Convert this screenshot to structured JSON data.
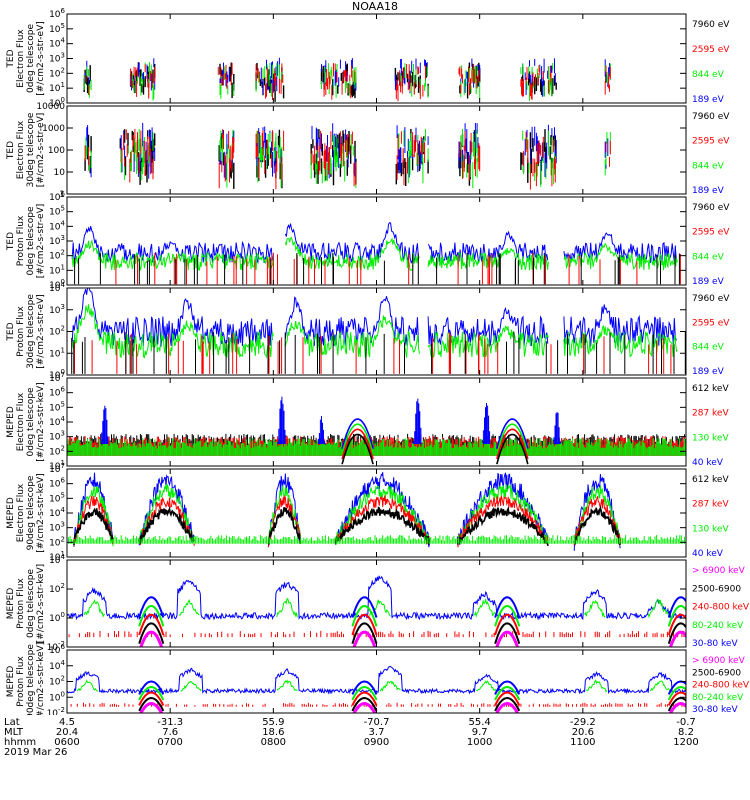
{
  "title": "NOAA18",
  "x_axis": {
    "time_hhmm": [
      "0600",
      "0700",
      "0800",
      "0900",
      "1000",
      "1100",
      "1200"
    ],
    "rows": [
      {
        "label": "Lat",
        "values": [
          "4.5",
          "-31.3",
          "55.9",
          "-70.7",
          "55.4",
          "-29.2",
          "-0.7"
        ]
      },
      {
        "label": "MLT",
        "values": [
          "20.4",
          "7.6",
          "18.6",
          "3.7",
          "9.7",
          "20.6",
          "8.2"
        ]
      },
      {
        "label": "hhmm",
        "values": [
          "0600",
          "0700",
          "0800",
          "0900",
          "1000",
          "1100",
          "1200"
        ]
      }
    ],
    "date": "2019 Mar 26"
  },
  "colors": {
    "black": "#000000",
    "blue": "#0000ff",
    "green": "#00ee00",
    "red": "#ff0000",
    "magenta": "#ff00ff"
  },
  "chart_data": [
    {
      "type": "line",
      "panel": "TED 0deg electron",
      "ylabel": [
        "TED",
        "Electron Flux",
        "0deg telescope",
        "[#/cm2-s-str-eV]"
      ],
      "yscale": "log",
      "ylim_exp": [
        0,
        6
      ],
      "tick_labels": [
        "10^0",
        "10^1",
        "10^2",
        "10^3",
        "10^4",
        "10^5",
        "10^6"
      ],
      "legend": [
        {
          "text": "7960 eV",
          "color": "black"
        },
        {
          "text": "2595 eV",
          "color": "red"
        },
        {
          "text": "844 eV",
          "color": "green"
        },
        {
          "text": "189 eV",
          "color": "blue"
        }
      ],
      "series_style": "sparse_spikes",
      "active_windows_hhmm": [
        [
          "0610",
          "0614"
        ],
        [
          "0637",
          "0651"
        ],
        [
          "0728",
          "0737"
        ],
        [
          "0750",
          "0806"
        ],
        [
          "0828",
          "0848"
        ],
        [
          "0911",
          "0930"
        ],
        [
          "0948",
          "1000"
        ],
        [
          "1024",
          "1045"
        ],
        [
          "1113",
          "1116"
        ]
      ],
      "typical_log10_flux": 1.8
    },
    {
      "type": "line",
      "panel": "TED 30deg electron",
      "ylabel": [
        "TED",
        "Electron Flux",
        "30deg telescope",
        "[#/cm2-s-str-eV]"
      ],
      "yscale": "log",
      "ylim_exp": [
        0,
        4
      ],
      "tick_labels": [
        "1",
        "10",
        "100",
        "1000",
        "10000"
      ],
      "legend": [
        {
          "text": "7960 eV",
          "color": "black"
        },
        {
          "text": "2595 eV",
          "color": "red"
        },
        {
          "text": "844 eV",
          "color": "green"
        },
        {
          "text": "189 eV",
          "color": "blue"
        }
      ],
      "series_style": "sparse_spikes",
      "active_windows_hhmm": [
        [
          "0610",
          "0614"
        ],
        [
          "0631",
          "0651"
        ],
        [
          "0728",
          "0737"
        ],
        [
          "0750",
          "0806"
        ],
        [
          "0822",
          "0848"
        ],
        [
          "0911",
          "0930"
        ],
        [
          "0948",
          "1000"
        ],
        [
          "1024",
          "1045"
        ],
        [
          "1113",
          "1116"
        ]
      ],
      "typical_log10_flux": 2.0
    },
    {
      "type": "line",
      "panel": "TED 0deg proton",
      "ylabel": [
        "TED",
        "Proton Flux",
        "0deg telescope",
        "[#/cm2-s-str-eV]"
      ],
      "yscale": "log",
      "ylim_exp": [
        0,
        6
      ],
      "tick_labels": [
        "10^0",
        "10^1",
        "10^2",
        "10^3",
        "10^4",
        "10^5",
        "10^6"
      ],
      "legend": [
        {
          "text": "7960 eV",
          "color": "black"
        },
        {
          "text": "2595 eV",
          "color": "red"
        },
        {
          "text": "844 eV",
          "color": "green"
        },
        {
          "text": "189 eV",
          "color": "blue"
        }
      ],
      "series_style": "continuous_noisy",
      "baseline_log10": 1.6,
      "blue_peaks": [
        {
          "hhmm": "0613",
          "log10": 3.8
        },
        {
          "hhmm": "0701",
          "log10": 2.8
        },
        {
          "hhmm": "0810",
          "log10": 4.0
        },
        {
          "hhmm": "0908",
          "log10": 4.0
        },
        {
          "hhmm": "1017",
          "log10": 3.4
        },
        {
          "hhmm": "1114",
          "log10": 3.6
        }
      ]
    },
    {
      "type": "line",
      "panel": "TED 30deg proton",
      "ylabel": [
        "TED",
        "Proton Flux",
        "30deg telescope",
        "[#/cm2-s-str-eV]"
      ],
      "yscale": "log",
      "ylim_exp": [
        0,
        4
      ],
      "tick_labels": [
        "10^0",
        "10^1",
        "10^2",
        "10^3",
        "10^4"
      ],
      "legend": [
        {
          "text": "7960 eV",
          "color": "black"
        },
        {
          "text": "2595 eV",
          "color": "red"
        },
        {
          "text": "844 eV",
          "color": "green"
        },
        {
          "text": "189 eV",
          "color": "blue"
        }
      ],
      "series_style": "continuous_noisy",
      "baseline_log10": 1.4,
      "blue_peaks": [
        {
          "hhmm": "0612",
          "log10": 4.0
        },
        {
          "hhmm": "0710",
          "log10": 3.3
        },
        {
          "hhmm": "0813",
          "log10": 3.3
        },
        {
          "hhmm": "0905",
          "log10": 3.5
        },
        {
          "hhmm": "1016",
          "log10": 3.0
        },
        {
          "hhmm": "1113",
          "log10": 3.1
        }
      ]
    },
    {
      "type": "line",
      "panel": "MEPED 0deg electron",
      "ylabel": [
        "MEPED",
        "Electron Flux",
        "0deg telescope",
        "[#/cm2-s-str-keV]"
      ],
      "yscale": "log",
      "ylim_exp": [
        1,
        7
      ],
      "tick_labels": [
        "10^1",
        "10^2",
        "10^3",
        "10^4",
        "10^5",
        "10^6",
        "10^7"
      ],
      "legend": [
        {
          "text": "612 keV",
          "color": "black"
        },
        {
          "text": "287 keV",
          "color": "red"
        },
        {
          "text": "130 keV",
          "color": "green"
        },
        {
          "text": "40 keV",
          "color": "blue"
        }
      ],
      "series_style": "noise_with_spikes",
      "baseline_log10": 2.5,
      "bumps_hhmm": [
        "0849",
        "1019"
      ],
      "spikes": [
        {
          "hhmm": "0622",
          "log10": 4.8
        },
        {
          "hhmm": "0805",
          "log10": 5.5
        },
        {
          "hhmm": "0828",
          "log10": 4.0
        },
        {
          "hhmm": "0924",
          "log10": 5.4
        },
        {
          "hhmm": "1004",
          "log10": 5.0
        },
        {
          "hhmm": "1045",
          "log10": 4.5
        }
      ]
    },
    {
      "type": "line",
      "panel": "MEPED 90deg electron",
      "ylabel": [
        "MEPED",
        "Electron Flux",
        "90deg telescope",
        "[#/cm2-s-str-keV]"
      ],
      "yscale": "log",
      "ylim_exp": [
        1,
        7
      ],
      "tick_labels": [
        "10^1",
        "10^2",
        "10^3",
        "10^4",
        "10^5",
        "10^6",
        "10^7"
      ],
      "legend": [
        {
          "text": "612 keV",
          "color": "black"
        },
        {
          "text": "287 keV",
          "color": "red"
        },
        {
          "text": "130 keV",
          "color": "green"
        },
        {
          "text": "40 keV",
          "color": "blue"
        }
      ],
      "series_style": "dense_envelopes",
      "baseline_log10": 2.0,
      "passes_hhmm": [
        [
          "0604",
          "0627"
        ],
        [
          "0642",
          "0714"
        ],
        [
          "0757",
          "0816"
        ],
        [
          "0836",
          "0931"
        ],
        [
          "0947",
          "1040"
        ],
        [
          "1055",
          "1122"
        ]
      ]
    },
    {
      "type": "line",
      "panel": "MEPED 0deg proton",
      "ylabel": [
        "MEPED",
        "Proton Flux",
        "0deg telescope",
        "[#/cm2-s-str-keV]"
      ],
      "yscale": "log",
      "ylim_exp": [
        -2,
        5
      ],
      "tick_labels": [
        "10^-2",
        "10^0",
        "10^2",
        "10^4"
      ],
      "legend": [
        {
          "text": "> 6900 keV",
          "color": "magenta"
        },
        {
          "text": "2500-6900",
          "color": "black"
        },
        {
          "text": "240-800 keV",
          "color": "red"
        },
        {
          "text": "80-240 keV",
          "color": "green"
        },
        {
          "text": "30-80 keV",
          "color": "blue"
        }
      ],
      "series_style": "proton_bursts",
      "baseline_log10": 0.5,
      "blue_bursts": [
        {
          "hhmm": "0616",
          "log10": 2.6
        },
        {
          "hhmm": "0711",
          "log10": 3.4
        },
        {
          "hhmm": "0808",
          "log10": 3.2
        },
        {
          "hhmm": "0902",
          "log10": 3.7
        },
        {
          "hhmm": "1003",
          "log10": 2.3
        },
        {
          "hhmm": "1107",
          "log10": 2.6
        },
        {
          "hhmm": "1144",
          "log10": 1.6
        }
      ],
      "saa_hhmm": [
        "0649",
        "0853",
        "1016",
        "1157"
      ]
    },
    {
      "type": "line",
      "panel": "MEPED 90deg proton",
      "ylabel": [
        "MEPED",
        "Proton Flux",
        "90deg telescope",
        "[#/cm2-s-str-keV]"
      ],
      "yscale": "log",
      "ylim_exp": [
        -2,
        6
      ],
      "tick_labels": [
        "10^-2",
        "10^0",
        "10^2",
        "10^4",
        "10^6"
      ],
      "legend": [
        {
          "text": "> 6900 keV",
          "color": "magenta"
        },
        {
          "text": "2500-6900",
          "color": "black"
        },
        {
          "text": "240-800 keV",
          "color": "red"
        },
        {
          "text": "80-240 keV",
          "color": "green"
        },
        {
          "text": "30-80 keV",
          "color": "blue"
        }
      ],
      "series_style": "proton_bursts",
      "baseline_log10": 0.8,
      "blue_bursts": [
        {
          "hhmm": "0612",
          "log10": 3.2
        },
        {
          "hhmm": "0712",
          "log10": 3.5
        },
        {
          "hhmm": "0808",
          "log10": 3.4
        },
        {
          "hhmm": "0908",
          "log10": 3.8
        },
        {
          "hhmm": "1004",
          "log10": 2.8
        },
        {
          "hhmm": "1108",
          "log10": 3.0
        },
        {
          "hhmm": "1145",
          "log10": 3.0
        }
      ],
      "saa_hhmm": [
        "0649",
        "0853",
        "1016",
        "1157"
      ]
    }
  ]
}
